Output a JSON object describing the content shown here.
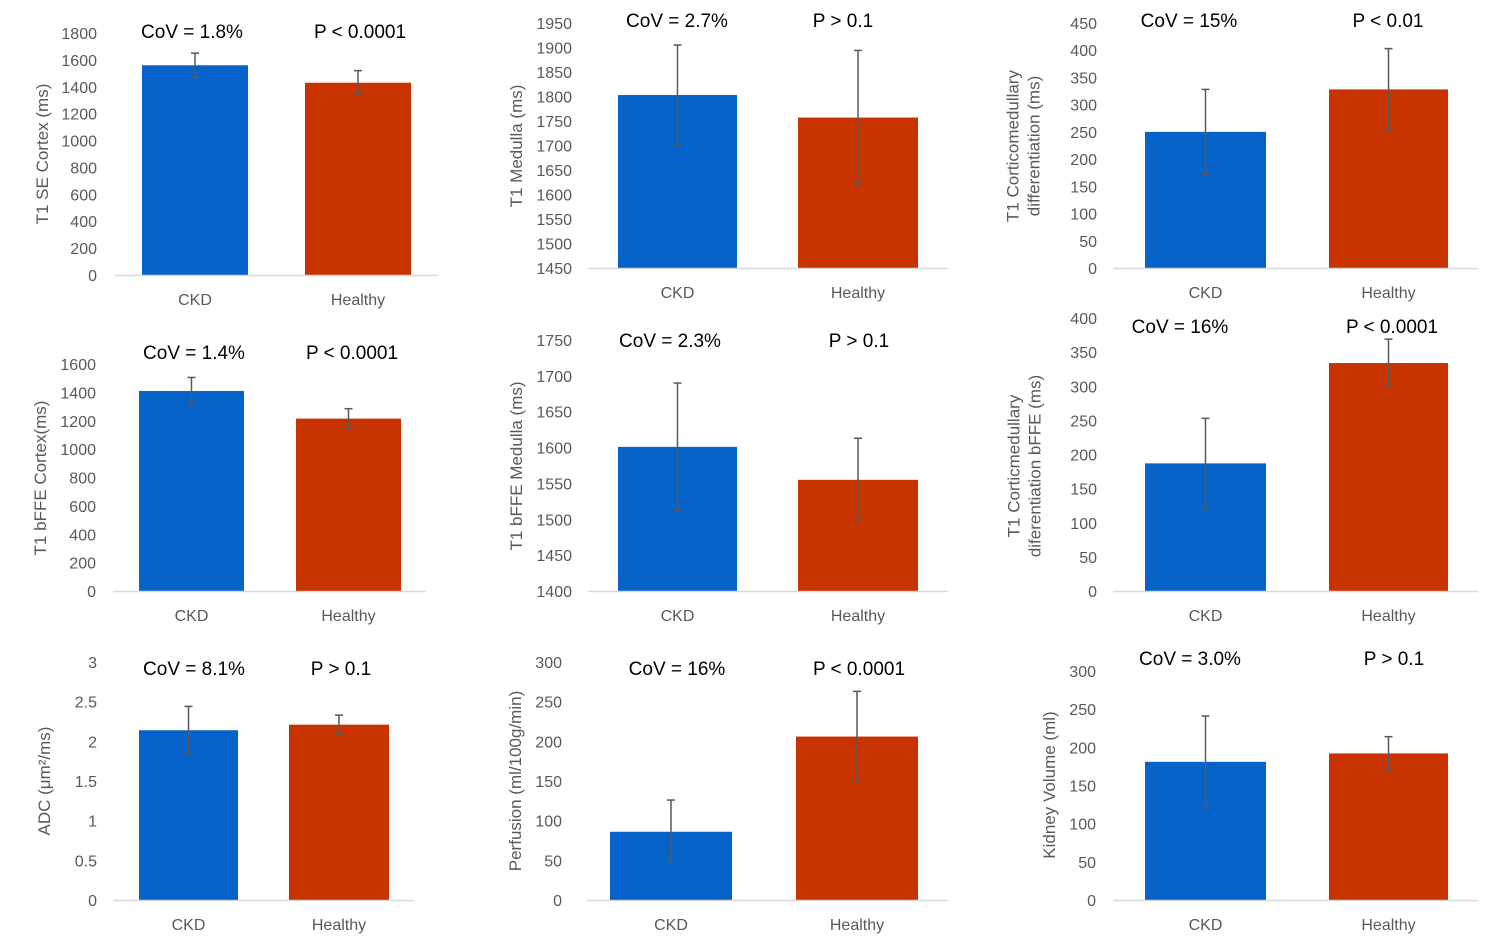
{
  "colors": {
    "ckd": "#0563C9",
    "healthy": "#C93300",
    "axis": "#D9D9D9",
    "error": "#595959",
    "text": "#595959"
  },
  "chart_data": [
    {
      "type": "bar",
      "ylabel": [
        "T1 SE Cortex (ms)"
      ],
      "ylim": [
        0,
        1800
      ],
      "yticks": [
        0,
        200,
        400,
        600,
        800,
        1000,
        1200,
        1400,
        1600,
        1800
      ],
      "categories": [
        "CKD",
        "Healthy"
      ],
      "values": [
        1560,
        1430
      ],
      "errors": [
        90,
        90
      ],
      "annotations": [
        "CoV = 1.8%",
        "P < 0.0001"
      ]
    },
    {
      "type": "bar",
      "ylabel": [
        "T1 Medulla (ms)"
      ],
      "ylim": [
        1450,
        1950
      ],
      "yticks": [
        1450,
        1500,
        1550,
        1600,
        1650,
        1700,
        1750,
        1800,
        1850,
        1900,
        1950
      ],
      "categories": [
        "CKD",
        "Healthy"
      ],
      "values": [
        1803,
        1757
      ],
      "errors": [
        102,
        137
      ],
      "annotations": [
        "CoV = 2.7%",
        "P > 0.1"
      ]
    },
    {
      "type": "bar",
      "ylabel": [
        "T1 Corticomedullary",
        "differentiation (ms)"
      ],
      "ylim": [
        0,
        450
      ],
      "yticks": [
        0,
        50,
        100,
        150,
        200,
        250,
        300,
        350,
        400,
        450
      ],
      "categories": [
        "CKD",
        "Healthy"
      ],
      "values": [
        250,
        328
      ],
      "errors": [
        78,
        75
      ],
      "annotations": [
        "CoV = 15%",
        "P < 0.01"
      ]
    },
    {
      "type": "bar",
      "ylabel": [
        "T1 bFFE Cortex(ms)"
      ],
      "ylim": [
        0,
        1600
      ],
      "yticks": [
        0,
        200,
        400,
        600,
        800,
        1000,
        1200,
        1400,
        1600
      ],
      "categories": [
        "CKD",
        "Healthy"
      ],
      "values": [
        1410,
        1215
      ],
      "errors": [
        95,
        70
      ],
      "annotations": [
        "CoV = 1.4%",
        "P < 0.0001"
      ]
    },
    {
      "type": "bar",
      "ylabel": [
        "T1 bFFE Medulla (ms)"
      ],
      "ylim": [
        1400,
        1750
      ],
      "yticks": [
        1400,
        1450,
        1500,
        1550,
        1600,
        1650,
        1700,
        1750
      ],
      "categories": [
        "CKD",
        "Healthy"
      ],
      "values": [
        1601,
        1555
      ],
      "errors": [
        89,
        58
      ],
      "annotations": [
        "CoV = 2.3%",
        "P > 0.1"
      ]
    },
    {
      "type": "bar",
      "ylabel": [
        "T1 Corticmedullary",
        "diferentiation bFFE (ms)"
      ],
      "ylim": [
        0,
        400
      ],
      "yticks": [
        0,
        50,
        100,
        150,
        200,
        250,
        300,
        350,
        400
      ],
      "categories": [
        "CKD",
        "Healthy"
      ],
      "values": [
        187,
        334
      ],
      "errors": [
        66,
        35
      ],
      "annotations": [
        "CoV = 16%",
        "P < 0.0001"
      ]
    },
    {
      "type": "bar",
      "ylabel": [
        "ADC (μm²/ms)"
      ],
      "ylim": [
        0,
        3
      ],
      "yticks": [
        0,
        0.5,
        1,
        1.5,
        2,
        2.5,
        3
      ],
      "categories": [
        "CKD",
        "Healthy"
      ],
      "values": [
        2.14,
        2.21
      ],
      "errors": [
        0.3,
        0.12
      ],
      "annotations": [
        "CoV = 8.1%",
        "P > 0.1"
      ]
    },
    {
      "type": "bar",
      "ylabel": [
        "Perfusion (ml/100g/min)"
      ],
      "ylim": [
        0,
        300
      ],
      "yticks": [
        0,
        50,
        100,
        150,
        200,
        250,
        300
      ],
      "categories": [
        "CKD",
        "Healthy"
      ],
      "values": [
        86,
        206
      ],
      "errors": [
        40,
        57
      ],
      "annotations": [
        "CoV = 16%",
        "P < 0.0001"
      ]
    },
    {
      "type": "bar",
      "ylabel": [
        "Kidney Volume (ml)"
      ],
      "ylim": [
        0,
        300
      ],
      "yticks": [
        0,
        50,
        100,
        150,
        200,
        250,
        300
      ],
      "categories": [
        "CKD",
        "Healthy"
      ],
      "values": [
        181,
        192
      ],
      "errors": [
        60,
        22
      ],
      "annotations": [
        "CoV = 3.0%",
        "P > 0.1"
      ]
    }
  ]
}
